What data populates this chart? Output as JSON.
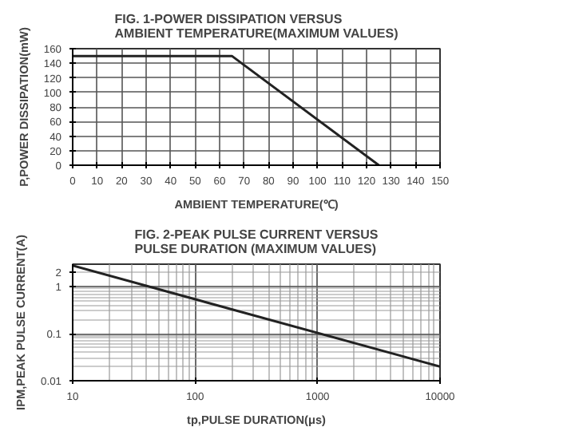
{
  "chart_data": [
    {
      "type": "line",
      "title": "FIG. 1-POWER DISSIPATION VERSUS AMBIENT TEMPERATURE(MAXIMUM VALUES)",
      "xlabel": "AMBIENT TEMPERATURE(℃)",
      "ylabel": "P,POWER DISSIPATION(mW)",
      "series": [
        {
          "color": "#222222",
          "x": [
            0,
            65,
            125
          ],
          "values": [
            150,
            150,
            0
          ]
        }
      ],
      "xlim": [
        0,
        150
      ],
      "xticks": [
        0,
        10,
        20,
        30,
        40,
        50,
        60,
        70,
        80,
        90,
        100,
        110,
        120,
        130,
        140,
        150
      ],
      "ylim": [
        0,
        160
      ],
      "yticks": [
        0,
        20,
        40,
        60,
        80,
        100,
        120,
        140,
        160
      ],
      "grid": true
    },
    {
      "type": "line",
      "title": "FIG. 2-PEAK PULSE CURRENT VERSUS PULSE DURATION (MAXIMUM VALUES)",
      "xlabel": "tp,PULSE DURATION(μs)",
      "ylabel": "IPM,PEAK PULSE CURRENT(A)",
      "series": [
        {
          "color": "#222222",
          "x": [
            10,
            10000
          ],
          "values": [
            2.8,
            0.02
          ]
        }
      ],
      "log": "xy",
      "xlim": [
        10,
        10000
      ],
      "xticks": [
        10,
        100,
        1000,
        10000
      ],
      "ylim": [
        0.01,
        3
      ],
      "yticks": [
        0.01,
        0.1,
        1,
        2
      ],
      "grid": true
    }
  ]
}
